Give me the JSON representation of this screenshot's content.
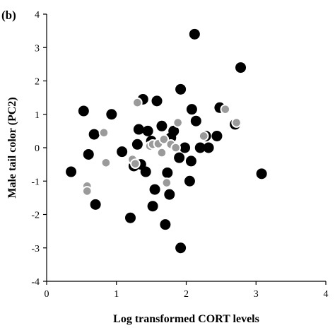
{
  "panel_label": "(b)",
  "chart_data": {
    "type": "scatter",
    "xlabel": "Log transformed CORT levels",
    "ylabel": "Male tail color (PC2)",
    "xlim": [
      0,
      4
    ],
    "ylim": [
      -4,
      4
    ],
    "x_ticks": [
      "0",
      "1",
      "2",
      "3",
      "4"
    ],
    "y_ticks": [
      "4",
      "3",
      "2",
      "1",
      "0",
      "-1",
      "-2",
      "-3",
      "-4"
    ],
    "grid": false,
    "colors": {
      "filled": "#000000",
      "open_fill": "#9a9a9a",
      "open_ring": "#ffffff"
    },
    "series": [
      {
        "marker": "filled",
        "points": [
          [
            0.35,
            -0.72
          ],
          [
            0.53,
            1.1
          ],
          [
            0.6,
            -0.2
          ],
          [
            0.68,
            0.4
          ],
          [
            0.7,
            -1.7
          ],
          [
            0.93,
            1.0
          ],
          [
            1.08,
            -0.12
          ],
          [
            1.2,
            -2.1
          ],
          [
            1.25,
            -0.55
          ],
          [
            1.3,
            0.1
          ],
          [
            1.32,
            0.55
          ],
          [
            1.35,
            -0.5
          ],
          [
            1.38,
            1.45
          ],
          [
            1.42,
            -0.72
          ],
          [
            1.45,
            0.5
          ],
          [
            1.5,
            0.2
          ],
          [
            1.52,
            -1.75
          ],
          [
            1.55,
            -1.25
          ],
          [
            1.58,
            1.4
          ],
          [
            1.65,
            0.65
          ],
          [
            1.7,
            -2.3
          ],
          [
            1.73,
            -0.75
          ],
          [
            1.76,
            -1.4
          ],
          [
            1.78,
            0.3
          ],
          [
            1.82,
            0.5
          ],
          [
            1.9,
            -0.3
          ],
          [
            1.92,
            1.75
          ],
          [
            1.92,
            -3.0
          ],
          [
            1.98,
            0.0
          ],
          [
            2.05,
            -1.0
          ],
          [
            2.07,
            -0.4
          ],
          [
            2.08,
            1.15
          ],
          [
            2.12,
            3.4
          ],
          [
            2.14,
            0.8
          ],
          [
            2.2,
            0.0
          ],
          [
            2.28,
            0.35
          ],
          [
            2.32,
            0.0
          ],
          [
            2.44,
            0.35
          ],
          [
            2.48,
            1.2
          ],
          [
            2.7,
            0.7
          ],
          [
            2.78,
            2.4
          ],
          [
            3.08,
            -0.78
          ]
        ]
      },
      {
        "marker": "open",
        "points": [
          [
            0.58,
            -1.15
          ],
          [
            0.58,
            -1.3
          ],
          [
            0.82,
            0.45
          ],
          [
            0.85,
            -0.45
          ],
          [
            1.23,
            -0.35
          ],
          [
            1.27,
            -0.48
          ],
          [
            1.3,
            1.35
          ],
          [
            1.48,
            0.05
          ],
          [
            1.52,
            0.1
          ],
          [
            1.6,
            0.12
          ],
          [
            1.65,
            -0.15
          ],
          [
            1.68,
            0.25
          ],
          [
            1.72,
            -1.05
          ],
          [
            1.78,
            0.1
          ],
          [
            1.85,
            0.0
          ],
          [
            1.88,
            0.75
          ],
          [
            2.25,
            0.35
          ],
          [
            2.56,
            1.15
          ],
          [
            2.72,
            0.75
          ]
        ]
      }
    ]
  }
}
